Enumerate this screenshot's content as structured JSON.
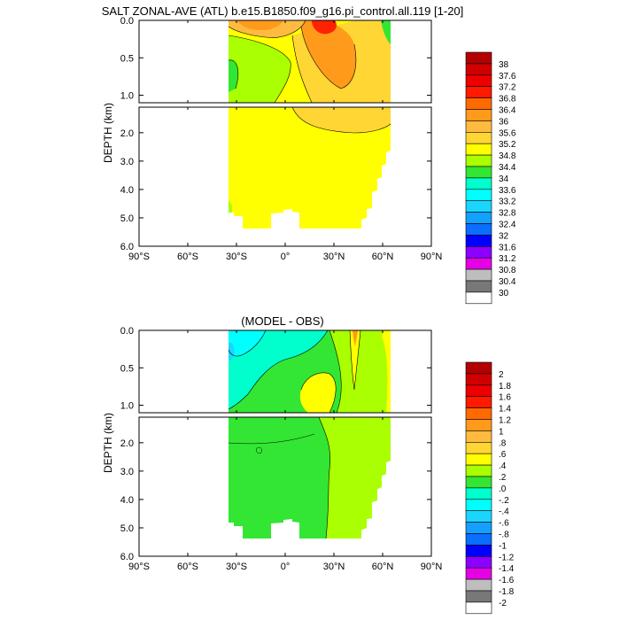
{
  "chart_data": [
    {
      "type": "heatmap",
      "title": "SALT ZONAL-AVE (ATL) b.e15.B1850.f09_g16.pi_control.all.119 [1-20]",
      "ylabel": "DEPTH (km)",
      "x_ticks": [
        "90°S",
        "60°S",
        "30°S",
        "0°",
        "30°N",
        "60°N",
        "90°N"
      ],
      "xlim": [
        -90,
        90
      ],
      "y_ticks_upper": [
        "0.0",
        "0.5",
        "1.0"
      ],
      "y_ticks_lower": [
        "2.0",
        "3.0",
        "4.0",
        "5.0",
        "6.0"
      ],
      "ylim": [
        0,
        6
      ],
      "colorbar_labels": [
        "38",
        "37.6",
        "37.2",
        "36.8",
        "36.4",
        "36",
        "35.6",
        "35.2",
        "34.8",
        "34.4",
        "34",
        "33.6",
        "33.2",
        "32.8",
        "32.4",
        "32",
        "31.6",
        "31.2",
        "30.8",
        "30.4",
        "30"
      ],
      "regions": [
        {
          "level": 35.0,
          "color": "#FFFF00",
          "note": "deep water 1.1-5.3 km"
        },
        {
          "level": 34.7,
          "color": "#AAFF00",
          "note": "southern upper 100-900 m"
        },
        {
          "level": 34.3,
          "color": "#33E633",
          "note": "southern near-surface"
        },
        {
          "level": 35.6,
          "color": "#FFD633",
          "note": "northern upper ocean"
        },
        {
          "level": 36.2,
          "color": "#FF9A1A",
          "note": "subtropical max N"
        },
        {
          "level": 37.0,
          "color": "#FF2200",
          "note": "surface max ~25N"
        }
      ]
    },
    {
      "type": "heatmap",
      "title": "(MODEL - OBS)",
      "ylabel": "DEPTH (km)",
      "x_ticks": [
        "90°S",
        "60°S",
        "30°S",
        "0°",
        "30°N",
        "60°N",
        "90°N"
      ],
      "xlim": [
        -90,
        90
      ],
      "y_ticks_upper": [
        "0.0",
        "0.5",
        "1.0"
      ],
      "y_ticks_lower": [
        "2.0",
        "3.0",
        "4.0",
        "5.0",
        "6.0"
      ],
      "ylim": [
        0,
        6
      ],
      "colorbar_labels": [
        "2",
        "1.8",
        "1.6",
        "1.4",
        "1.2",
        "1",
        ".8",
        ".6",
        ".4",
        ".2",
        ".0",
        "-.2",
        "-.4",
        "-.6",
        "-.8",
        "-1",
        "-1.2",
        "-1.4",
        "-1.6",
        "-1.8",
        "-2"
      ],
      "regions": [
        {
          "level": 0.1,
          "color": "#33E633",
          "note": "most of domain"
        },
        {
          "level": 0.3,
          "color": "#AAFF00",
          "note": "northern deep and upper"
        },
        {
          "level": -0.1,
          "color": "#00FFCC",
          "note": "southern upper"
        },
        {
          "level": -0.3,
          "color": "#1AD6FF",
          "note": "southern surface"
        },
        {
          "level": 0.5,
          "color": "#FFFF00",
          "note": "blob ~20N 500-1000 m"
        }
      ]
    }
  ],
  "colors": {
    "bar1": [
      "#B30000",
      "#D10000",
      "#EE0000",
      "#FF1A00",
      "#FF6A00",
      "#FF9A1A",
      "#FFBA40",
      "#FFD633",
      "#FFFF00",
      "#AAFF00",
      "#33E633",
      "#00FFCC",
      "#00FFFF",
      "#1AD6FF",
      "#14A0FF",
      "#0A6EFF",
      "#0000FF",
      "#8C00FF",
      "#E600E6",
      "#BEBEBE",
      "#787878",
      "#FFFFFF"
    ],
    "bar2": [
      "#B30000",
      "#D10000",
      "#EE0000",
      "#FF1A00",
      "#FF6A00",
      "#FF9A1A",
      "#FFBA40",
      "#FFD633",
      "#FFFF00",
      "#AAFF00",
      "#33E633",
      "#00FFCC",
      "#00FFFF",
      "#1AD6FF",
      "#14A0FF",
      "#0A6EFF",
      "#0000FF",
      "#8C00FF",
      "#E600E6",
      "#BEBEBE",
      "#787878",
      "#FFFFFF"
    ]
  }
}
